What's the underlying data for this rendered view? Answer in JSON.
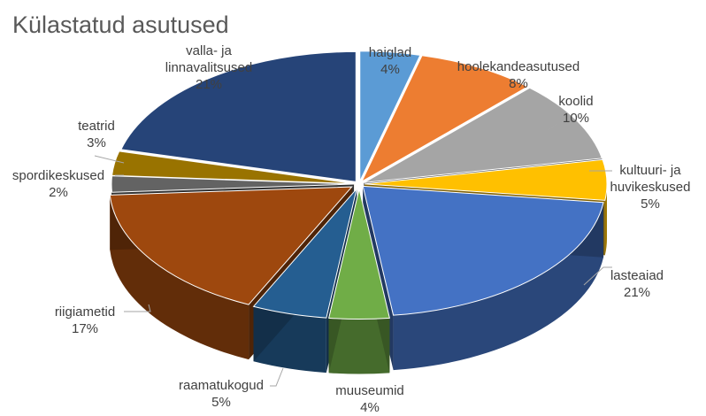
{
  "chart_data": {
    "type": "pie",
    "style": "3d-exploded",
    "title": "Külastatud asutused",
    "legend": "none",
    "slices": [
      {
        "label": "haiglad",
        "value": 4,
        "value_label": "4%",
        "color": "#5b9bd5"
      },
      {
        "label": "hoolekandeasutused",
        "value": 8,
        "value_label": "8%",
        "color": "#ed7d31"
      },
      {
        "label": "koolid",
        "value": 10,
        "value_label": "10%",
        "color": "#a5a5a5"
      },
      {
        "label": "kultuuri- ja huvikeskused",
        "value": 5,
        "value_label": "5%",
        "color": "#ffc000"
      },
      {
        "label": "lasteaiad",
        "value": 21,
        "value_label": "21%",
        "color": "#4472c4"
      },
      {
        "label": "muuseumid",
        "value": 4,
        "value_label": "4%",
        "color": "#70ad47"
      },
      {
        "label": "raamatukogud",
        "value": 5,
        "value_label": "5%",
        "color": "#255e91"
      },
      {
        "label": "riigiametid",
        "value": 17,
        "value_label": "17%",
        "color": "#9e480e"
      },
      {
        "label": "spordikeskused",
        "value": 2,
        "value_label": "2%",
        "color": "#636363"
      },
      {
        "label": "teatrid",
        "value": 3,
        "value_label": "3%",
        "color": "#997300"
      },
      {
        "label": "valla- ja linnavalitsused",
        "value": 21,
        "value_label": "21%",
        "color": "#264478"
      }
    ]
  }
}
